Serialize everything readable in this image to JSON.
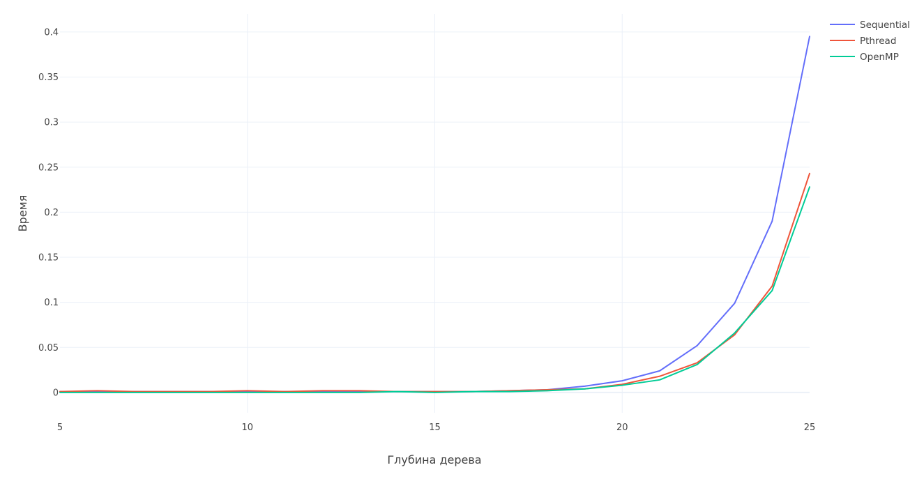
{
  "chart_data": {
    "type": "line",
    "title": "",
    "xlabel": "Глубина дерева",
    "ylabel": "Время",
    "xlim": [
      5,
      25
    ],
    "ylim": [
      -0.0225,
      0.42
    ],
    "grid": true,
    "legend_position": "top-right",
    "x_ticks": [
      5,
      10,
      15,
      20,
      25
    ],
    "x_tick_labels": [
      "5",
      "10",
      "15",
      "20",
      "25"
    ],
    "y_ticks": [
      0,
      0.05,
      0.1,
      0.15,
      0.2,
      0.25,
      0.3,
      0.35,
      0.4
    ],
    "y_tick_labels": [
      "0",
      "0.05",
      "0.1",
      "0.15",
      "0.2",
      "0.25",
      "0.3",
      "0.35",
      "0.4"
    ],
    "x": [
      5,
      6,
      7,
      8,
      9,
      10,
      11,
      12,
      13,
      14,
      15,
      16,
      17,
      18,
      19,
      20,
      21,
      22,
      23,
      24,
      25
    ],
    "series": [
      {
        "name": "Sequential",
        "color": "#636efa",
        "values": [
          0.001,
          0.001,
          0.001,
          0.001,
          0.001,
          0.001,
          0.001,
          0.001,
          0.001,
          0.001,
          0.001,
          0.001,
          0.002,
          0.003,
          0.007,
          0.013,
          0.024,
          0.052,
          0.099,
          0.19,
          0.395
        ]
      },
      {
        "name": "Pthread",
        "color": "#ef553b",
        "values": [
          0.001,
          0.002,
          0.001,
          0.001,
          0.001,
          0.002,
          0.001,
          0.002,
          0.002,
          0.001,
          0.001,
          0.001,
          0.002,
          0.003,
          0.004,
          0.009,
          0.018,
          0.033,
          0.064,
          0.118,
          0.243
        ]
      },
      {
        "name": "OpenMP",
        "color": "#00cc96",
        "values": [
          0.0,
          0.0,
          0.0,
          0.0,
          0.0,
          0.0,
          0.0,
          0.0,
          0.0,
          0.001,
          0.0,
          0.001,
          0.001,
          0.002,
          0.004,
          0.008,
          0.014,
          0.031,
          0.066,
          0.113,
          0.228
        ]
      }
    ]
  }
}
